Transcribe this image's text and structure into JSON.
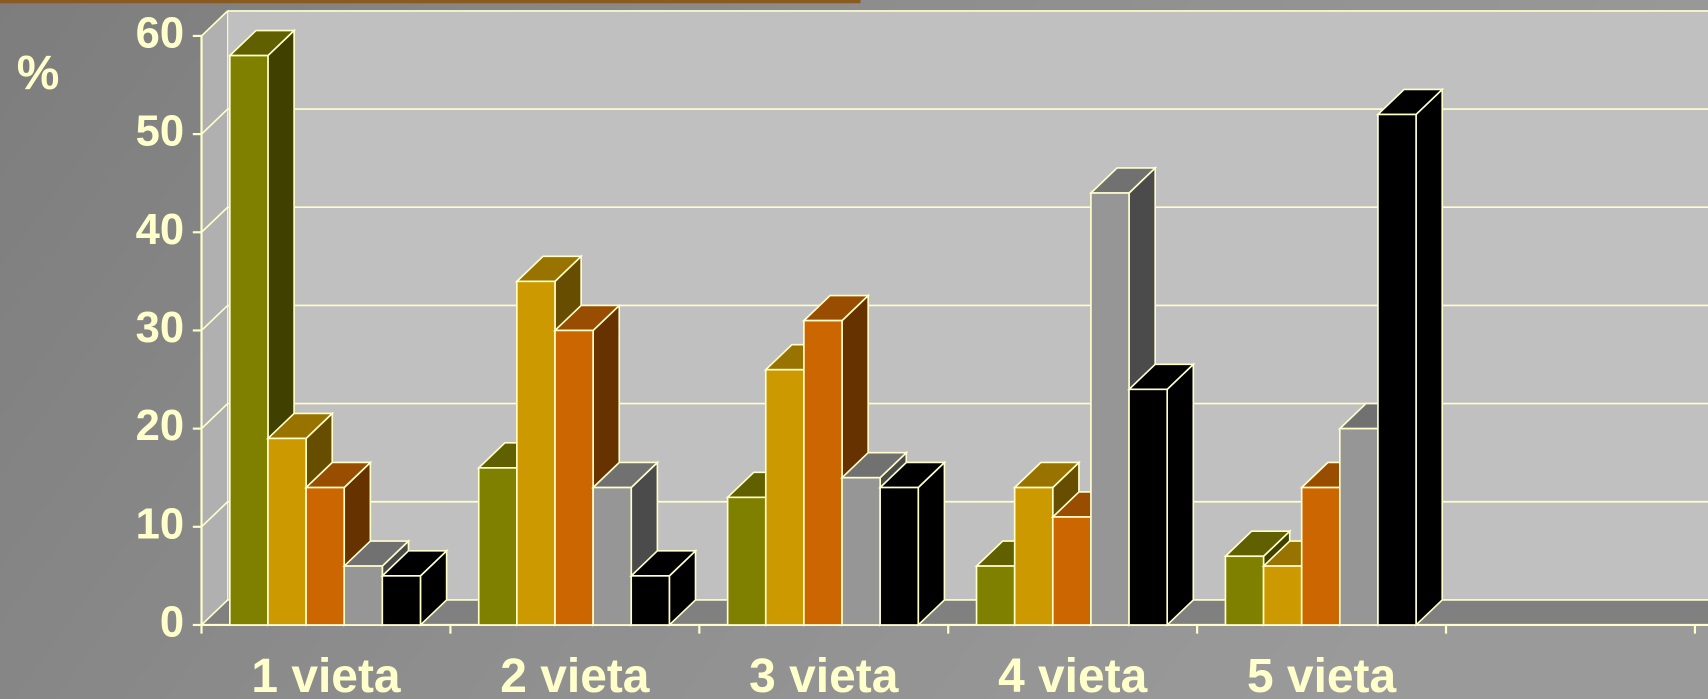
{
  "chart_data": {
    "type": "bar3d",
    "ylabel": "%",
    "categories": [
      "1 vieta",
      "2 vieta",
      "3 vieta",
      "4 vieta",
      "5 vieta",
      null
    ],
    "series": [
      {
        "color": "#808000",
        "values": [
          58,
          16,
          13,
          6,
          7,
          null
        ]
      },
      {
        "color": "#cc9900",
        "values": [
          19,
          35,
          26,
          14,
          6,
          null
        ]
      },
      {
        "color": "#cc6600",
        "values": [
          14,
          30,
          31,
          11,
          14,
          null
        ]
      },
      {
        "color": "#969696",
        "values": [
          6,
          14,
          15,
          44,
          20,
          null
        ]
      },
      {
        "color": "#000000",
        "values": [
          5,
          5,
          14,
          24,
          52,
          null
        ]
      }
    ],
    "ylim": [
      0,
      60
    ],
    "yticks": [
      0,
      10,
      20,
      30,
      40,
      50,
      60
    ],
    "grid": true
  }
}
